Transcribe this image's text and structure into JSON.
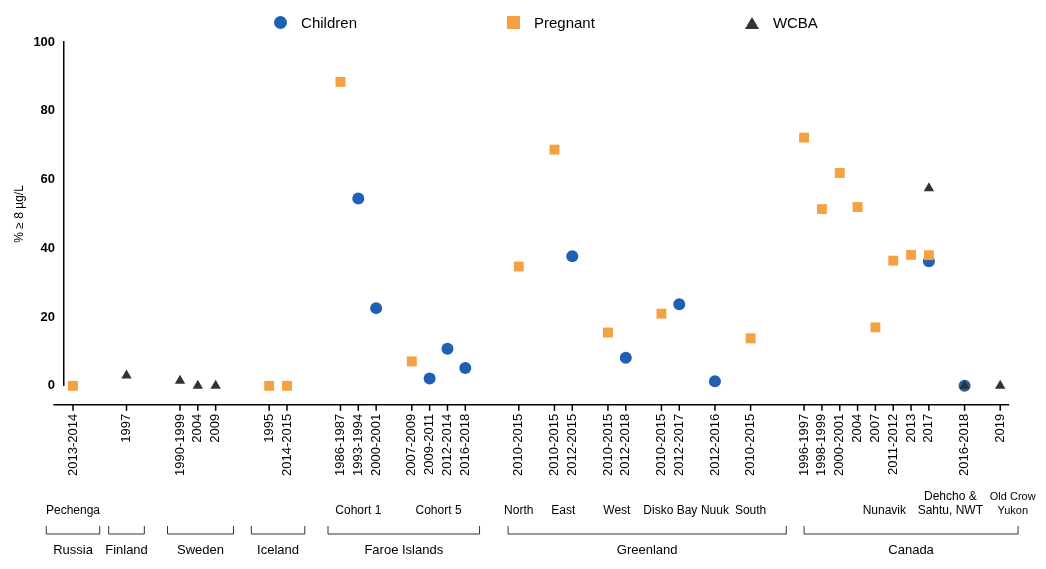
{
  "chart_data": {
    "type": "scatter",
    "ylabel": "% ≥ 8 µg/L",
    "categories": [
      "2013-2014",
      null,
      null,
      "1997",
      null,
      null,
      "1990-1999",
      "2004",
      "2009",
      null,
      null,
      "1995",
      "2014-2015",
      null,
      null,
      "1986-1987",
      "1993-1994",
      "2000-2001",
      null,
      "2007-2009",
      "2009-2011",
      "2012-2014",
      "2016-2018",
      null,
      null,
      "2010-2015",
      null,
      "2010-2015",
      "2012-2015",
      null,
      "2010-2015",
      "2012-2018",
      null,
      "2010-2015",
      "2012-2017",
      null,
      "2012-2016",
      null,
      "2010-2015",
      null,
      null,
      "1996-1997",
      "1998-1999",
      "2000-2001",
      "2004",
      "2007",
      "2011-2012",
      "2013",
      "2017",
      null,
      "2016-2018",
      null,
      "2019"
    ],
    "series": [
      {
        "name": "Children",
        "color": "#1f5fb4",
        "marker": "circle",
        "values": [
          null,
          null,
          null,
          null,
          null,
          null,
          null,
          null,
          null,
          null,
          null,
          null,
          null,
          null,
          null,
          null,
          54.5,
          22.6,
          null,
          null,
          2.1,
          10.8,
          5.2,
          null,
          null,
          null,
          null,
          null,
          37.7,
          null,
          null,
          8.2,
          null,
          null,
          23.7,
          null,
          1.3,
          null,
          null,
          null,
          null,
          null,
          null,
          null,
          null,
          null,
          null,
          null,
          36.2,
          null,
          0,
          null,
          null
        ]
      },
      {
        "name": "Pregnant",
        "color": "#f5a043",
        "marker": "square",
        "values": [
          0,
          null,
          null,
          null,
          null,
          null,
          null,
          null,
          null,
          null,
          null,
          0,
          0,
          null,
          null,
          88.4,
          null,
          null,
          null,
          7.1,
          null,
          null,
          null,
          null,
          null,
          34.7,
          null,
          68.7,
          null,
          null,
          15.5,
          null,
          null,
          21,
          null,
          null,
          null,
          null,
          13.8,
          null,
          null,
          72.2,
          51.4,
          61.9,
          52,
          17,
          36.4,
          38.1,
          38,
          null,
          null,
          null,
          null
        ]
      },
      {
        "name": "WCBA",
        "color": "#333333",
        "marker": "triangle",
        "values": [
          null,
          null,
          null,
          3,
          null,
          null,
          1.5,
          0,
          0,
          null,
          null,
          null,
          null,
          null,
          null,
          null,
          null,
          null,
          null,
          null,
          null,
          null,
          null,
          null,
          null,
          null,
          null,
          null,
          null,
          null,
          null,
          null,
          null,
          null,
          null,
          null,
          null,
          null,
          null,
          null,
          null,
          null,
          null,
          null,
          null,
          null,
          null,
          null,
          57.5,
          null,
          0,
          null,
          0
        ]
      }
    ],
    "ylim": [
      0,
      100
    ],
    "yticks": [
      0,
      20,
      40,
      60,
      80,
      100
    ],
    "grid": false,
    "legend": "top",
    "annotations": [
      "Pechenga",
      "Cohort 1",
      "Cohort 5",
      "North",
      "East",
      "West",
      "Disko Bay",
      "Nuuk",
      "South",
      "Nunavik",
      "Dehcho &\nSahtu, NWT",
      "Old Crow\nYukon",
      "Russia",
      "Finland",
      "Sweden",
      "Iceland",
      "Faroe Islands",
      "Greenland",
      "Canada"
    ]
  }
}
